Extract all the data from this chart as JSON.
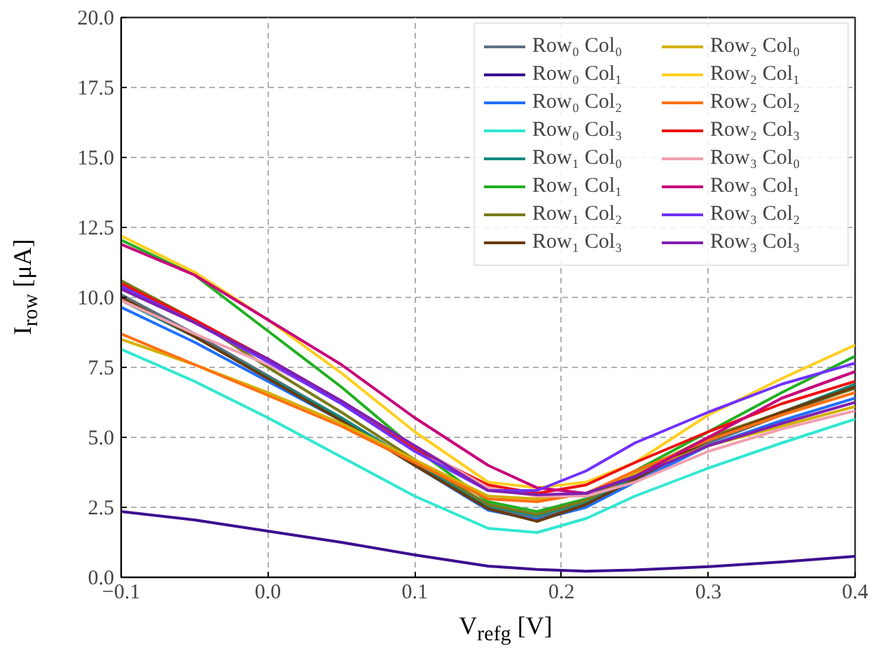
{
  "chart_data": {
    "type": "line",
    "xlabel": "V$_{refg}$ [V]",
    "ylabel": "I$_{row}$ [μA]",
    "x": [
      -0.1,
      -0.05,
      0,
      0.05,
      0.1,
      0.15,
      0.1833,
      0.2167,
      0.25,
      0.3,
      0.35,
      0.4
    ],
    "xlim": [
      -0.1,
      0.4
    ],
    "xticks": [
      {
        "value": -0.1,
        "label": "−0.1"
      },
      {
        "value": 0,
        "label": "0.0"
      },
      0.1,
      0.2,
      0.3,
      0.4
    ],
    "ylim": [
      0,
      20
    ],
    "yticks": [
      {
        "value": 0,
        "label": "0.0"
      },
      2.5,
      {
        "value": 5,
        "label": "5.0"
      },
      7.5,
      {
        "value": 10,
        "label": "10.0"
      },
      12.5,
      {
        "value": 15,
        "label": "15.0"
      },
      17.5,
      {
        "value": 20,
        "label": "20.0"
      }
    ],
    "grid": true,
    "legend": "top right",
    "marker": "none",
    "line_style": "solid",
    "series": [
      {
        "name": "Row₀ Col₀",
        "color": "#607080",
        "values": [
          10.1,
          8.7,
          7.2,
          5.7,
          4.1,
          2.5,
          2.1,
          2.6,
          3.5,
          4.8,
          5.8,
          6.8
        ]
      },
      {
        "name": "Row₀ Col₁",
        "color": "#3b0f8f",
        "values": [
          2.35,
          2.05,
          1.65,
          1.25,
          0.8,
          0.4,
          0.28,
          0.22,
          0.26,
          0.38,
          0.55,
          0.75
        ]
      },
      {
        "name": "Row₀ Col₂",
        "color": "#1f6fff",
        "values": [
          9.65,
          8.4,
          7.0,
          5.6,
          4.0,
          2.4,
          2.05,
          2.5,
          3.4,
          4.7,
          5.6,
          6.4
        ]
      },
      {
        "name": "Row₀ Col₃",
        "color": "#30e8d0",
        "values": [
          8.15,
          7.0,
          5.7,
          4.3,
          2.9,
          1.75,
          1.6,
          2.1,
          2.9,
          3.9,
          4.8,
          5.65
        ]
      },
      {
        "name": "Row₁ Col₀",
        "color": "#138a80",
        "values": [
          9.9,
          8.6,
          7.15,
          5.7,
          4.1,
          2.55,
          2.2,
          2.7,
          3.6,
          4.9,
          5.9,
          6.9
        ]
      },
      {
        "name": "Row₁ Col₁",
        "color": "#20b020",
        "values": [
          12.05,
          10.8,
          8.8,
          6.8,
          4.6,
          2.7,
          2.35,
          2.8,
          3.8,
          5.2,
          6.6,
          7.9
        ]
      },
      {
        "name": "Row₁ Col₂",
        "color": "#7a7a1a",
        "values": [
          10.6,
          9.2,
          7.5,
          5.9,
          4.2,
          2.6,
          2.25,
          2.75,
          3.7,
          5.0,
          5.9,
          6.75
        ]
      },
      {
        "name": "Row₁ Col₃",
        "color": "#6a3a0a",
        "values": [
          10.0,
          8.6,
          7.1,
          5.6,
          4.0,
          2.45,
          2.0,
          2.6,
          3.5,
          4.9,
          5.9,
          6.8
        ]
      },
      {
        "name": "Row₂ Col₀",
        "color": "#d4b000",
        "values": [
          8.5,
          7.6,
          6.6,
          5.5,
          4.2,
          2.9,
          2.8,
          3.0,
          3.7,
          4.7,
          5.4,
          6.1
        ]
      },
      {
        "name": "Row₂ Col₁",
        "color": "#ffcf20",
        "values": [
          12.2,
          10.9,
          9.2,
          7.3,
          5.2,
          3.4,
          3.2,
          3.4,
          4.1,
          5.8,
          7.1,
          8.3
        ]
      },
      {
        "name": "Row₂ Col₂",
        "color": "#ff7010",
        "values": [
          8.7,
          7.6,
          6.5,
          5.4,
          4.1,
          2.8,
          2.7,
          3.0,
          3.8,
          4.9,
          5.8,
          6.6
        ]
      },
      {
        "name": "Row₂ Col₃",
        "color": "#ee1010",
        "values": [
          10.5,
          9.2,
          7.8,
          6.3,
          4.6,
          3.3,
          3.0,
          3.3,
          4.1,
          5.2,
          6.2,
          7.0
        ]
      },
      {
        "name": "Row₃ Col₀",
        "color": "#f0a0b0",
        "values": [
          9.9,
          8.7,
          7.6,
          6.3,
          4.7,
          3.2,
          2.9,
          2.9,
          3.4,
          4.5,
          5.3,
          5.95
        ]
      },
      {
        "name": "Row₃ Col₁",
        "color": "#c8007a",
        "values": [
          11.9,
          10.8,
          9.2,
          7.6,
          5.7,
          4.0,
          3.2,
          3.0,
          3.6,
          5.0,
          6.4,
          7.35
        ]
      },
      {
        "name": "Row₃ Col₂",
        "color": "#7030ff",
        "values": [
          10.4,
          9.1,
          7.7,
          6.2,
          4.5,
          3.1,
          3.1,
          3.8,
          4.8,
          5.9,
          6.9,
          7.65
        ]
      },
      {
        "name": "Row₃ Col₃",
        "color": "#7f20b0",
        "values": [
          10.3,
          9.1,
          7.8,
          6.3,
          4.7,
          3.1,
          2.95,
          3.0,
          3.6,
          4.7,
          5.5,
          6.25
        ]
      }
    ]
  }
}
